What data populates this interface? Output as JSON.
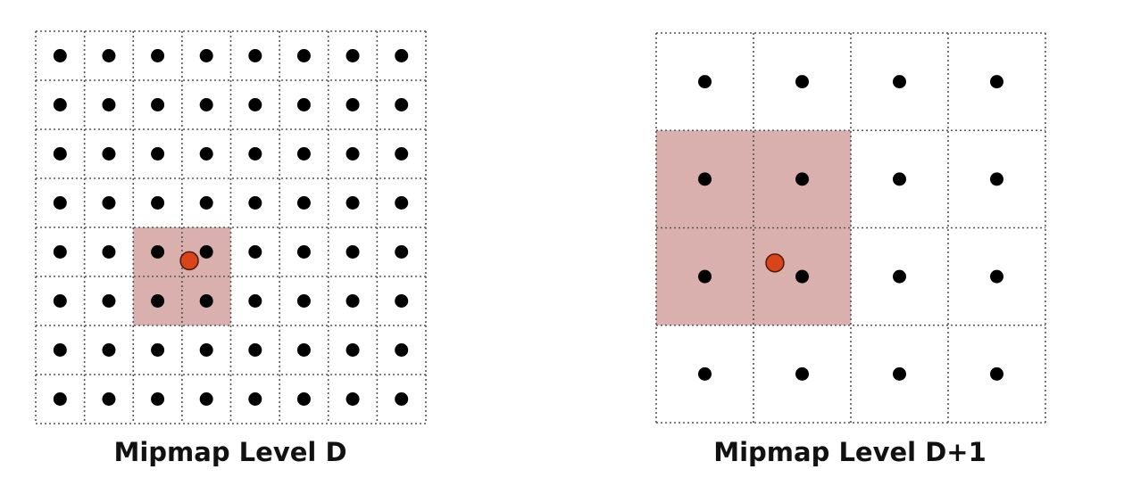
{
  "palette": {
    "grid_line": "#555555",
    "texel_dot": "#000000",
    "highlight_fill": "#d9b0ad",
    "sample_point_fill": "#d9441b",
    "sample_point_stroke": "#4a1a0a"
  },
  "panels": [
    {
      "caption": "Mipmap Level D",
      "grid_size": 8,
      "highlight": {
        "col": 2,
        "row": 4,
        "cols": 2,
        "rows": 2
      },
      "sample_point": {
        "col": 3.15,
        "row": 4.68
      }
    },
    {
      "caption": "Mipmap Level D+1",
      "grid_size": 4,
      "highlight": {
        "col": 0,
        "row": 1,
        "cols": 2,
        "rows": 2
      },
      "sample_point": {
        "col": 1.22,
        "row": 2.36
      }
    }
  ]
}
